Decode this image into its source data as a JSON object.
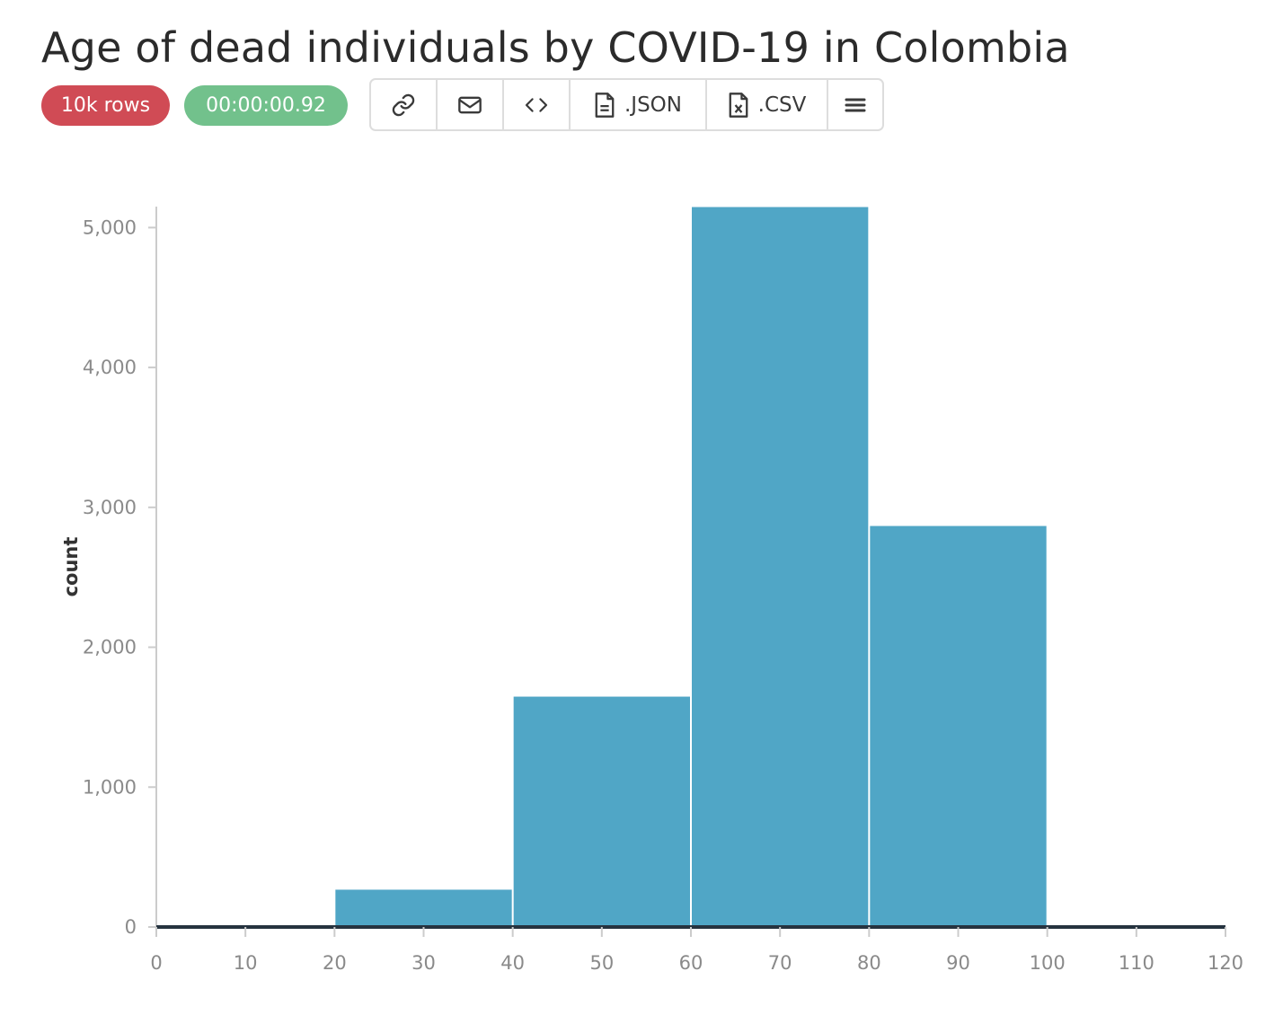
{
  "title": "Age of dead individuals by COVID-19 in Colombia",
  "badges": {
    "rows": "10k rows",
    "time": "00:00:00.92"
  },
  "toolbar": {
    "link_icon": "link-icon",
    "email_icon": "envelope-icon",
    "embed_icon": "code-icon",
    "json_label": ".JSON",
    "json_icon": "file-icon",
    "csv_label": ".CSV",
    "csv_icon": "file-x-icon",
    "menu_icon": "hamburger-menu-icon"
  },
  "colors": {
    "bar": "#50a6c6",
    "badge_rows": "#d04b55",
    "badge_time": "#72c18c",
    "baseline": "#26333f",
    "axis": "#cccccc"
  },
  "chart_data": {
    "type": "bar",
    "title": "",
    "xlabel": "",
    "ylabel": "count",
    "bins": [
      {
        "x0": 0,
        "x1": 20,
        "value": 0
      },
      {
        "x0": 20,
        "x1": 40,
        "value": 270
      },
      {
        "x0": 40,
        "x1": 60,
        "value": 1650
      },
      {
        "x0": 60,
        "x1": 80,
        "value": 5150
      },
      {
        "x0": 80,
        "x1": 100,
        "value": 2870
      },
      {
        "x0": 100,
        "x1": 120,
        "value": 0
      }
    ],
    "xlim": [
      0,
      120
    ],
    "ylim": [
      0,
      5150
    ],
    "xticks": [
      0,
      10,
      20,
      30,
      40,
      50,
      60,
      70,
      80,
      90,
      100,
      110,
      120
    ],
    "yticks": [
      0,
      1000,
      2000,
      3000,
      4000,
      5000
    ],
    "ytick_labels": [
      "0",
      "1,000",
      "2,000",
      "3,000",
      "4,000",
      "5,000"
    ],
    "grid": false,
    "legend": "none"
  }
}
